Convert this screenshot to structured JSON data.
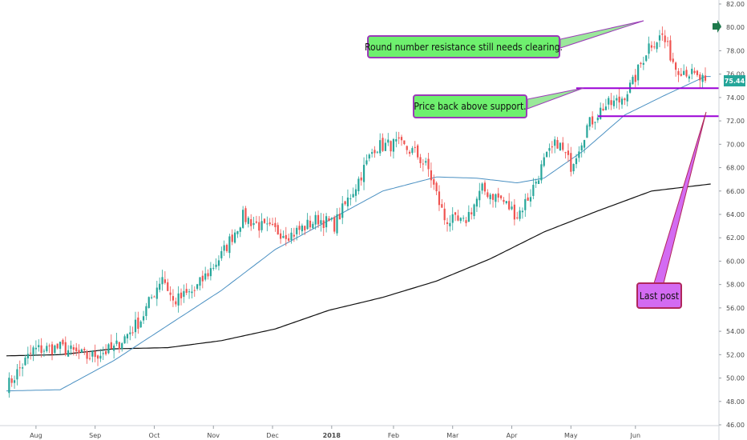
{
  "chart_data": {
    "type": "candlestick",
    "y_ticks": [
      "46.00",
      "48.00",
      "50.00",
      "52.00",
      "54.00",
      "56.00",
      "58.00",
      "60.00",
      "62.00",
      "64.00",
      "66.00",
      "68.00",
      "70.00",
      "72.00",
      "74.00",
      "76.00",
      "78.00",
      "80.00",
      "82.00"
    ],
    "x_ticks": [
      {
        "label": "Aug",
        "bold": false
      },
      {
        "label": "Sep",
        "bold": false
      },
      {
        "label": "Oct",
        "bold": false
      },
      {
        "label": "Nov",
        "bold": false
      },
      {
        "label": "Dec",
        "bold": false
      },
      {
        "label": "2018",
        "bold": true
      },
      {
        "label": "Feb",
        "bold": false
      },
      {
        "label": "Mar",
        "bold": false
      },
      {
        "label": "Apr",
        "bold": false
      },
      {
        "label": "May",
        "bold": false
      },
      {
        "label": "Jun",
        "bold": false
      }
    ],
    "ylim": [
      46,
      82
    ],
    "last_price": "75.44",
    "support_levels": [
      74.8,
      72.4
    ],
    "close_anchors": [
      [
        0,
        49.2
      ],
      [
        10,
        52.4
      ],
      [
        20,
        52.6
      ],
      [
        30,
        51.8
      ],
      [
        40,
        52.5
      ],
      [
        50,
        55.0
      ],
      [
        58,
        58.8
      ],
      [
        62,
        56.5
      ],
      [
        70,
        57.5
      ],
      [
        80,
        60.5
      ],
      [
        88,
        63.8
      ],
      [
        96,
        62.8
      ],
      [
        106,
        62.3
      ],
      [
        116,
        63.6
      ],
      [
        122,
        63.1
      ],
      [
        130,
        66.5
      ],
      [
        137,
        69.8
      ],
      [
        145,
        70.0
      ],
      [
        152,
        69.3
      ],
      [
        157,
        67.8
      ],
      [
        163,
        63.6
      ],
      [
        170,
        63.2
      ],
      [
        177,
        66.1
      ],
      [
        184,
        65.3
      ],
      [
        190,
        63.9
      ],
      [
        195,
        65.8
      ],
      [
        200,
        68.5
      ],
      [
        205,
        70.2
      ],
      [
        210,
        68.2
      ],
      [
        216,
        71.5
      ],
      [
        222,
        73.2
      ],
      [
        228,
        73.7
      ],
      [
        233,
        75.2
      ],
      [
        239,
        78.5
      ],
      [
        244,
        79.3
      ],
      [
        249,
        76.6
      ],
      [
        253,
        76.3
      ],
      [
        257,
        75.6
      ],
      [
        260,
        75.44
      ]
    ],
    "ma50": [
      [
        0,
        48.9
      ],
      [
        20,
        49.0
      ],
      [
        40,
        51.5
      ],
      [
        60,
        54.5
      ],
      [
        80,
        57.5
      ],
      [
        100,
        61.0
      ],
      [
        120,
        63.5
      ],
      [
        140,
        66.0
      ],
      [
        160,
        67.2
      ],
      [
        175,
        67.1
      ],
      [
        190,
        66.7
      ],
      [
        200,
        67.1
      ],
      [
        215,
        69.5
      ],
      [
        230,
        72.5
      ],
      [
        245,
        74.2
      ],
      [
        260,
        75.8
      ]
    ],
    "ma200": [
      [
        0,
        51.9
      ],
      [
        20,
        52.0
      ],
      [
        40,
        52.5
      ],
      [
        60,
        52.6
      ],
      [
        80,
        53.2
      ],
      [
        100,
        54.2
      ],
      [
        120,
        55.8
      ],
      [
        140,
        56.9
      ],
      [
        160,
        58.3
      ],
      [
        180,
        60.2
      ],
      [
        200,
        62.5
      ],
      [
        220,
        64.3
      ],
      [
        240,
        66.0
      ],
      [
        262,
        66.6
      ]
    ],
    "colors": {
      "up": "#26a69a",
      "down": "#ef5350",
      "ma50": "#4a90c2",
      "ma200": "#111111",
      "support": "#9b00d6",
      "arrow": "#1e7a4c"
    }
  },
  "annotations": {
    "resistance": "Round number resistance still needs clearing.",
    "support": "Price back above support.",
    "last_post": "Last post"
  }
}
